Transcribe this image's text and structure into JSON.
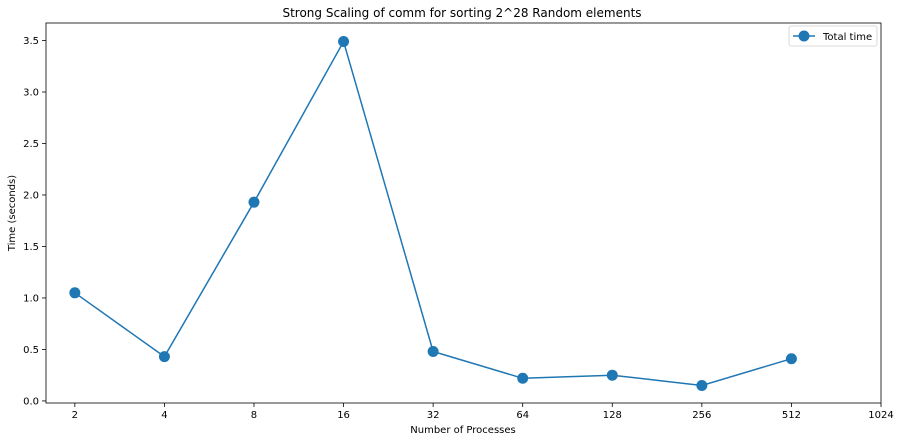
{
  "chart_data": {
    "type": "line",
    "title": "Strong Scaling of comm for sorting 2^28 Random elements",
    "xlabel": "Number of Processes",
    "ylabel": "Time (seconds)",
    "x_scale": "log2",
    "x_ticks": [
      "2",
      "4",
      "8",
      "16",
      "32",
      "64",
      "128",
      "256",
      "512",
      "1024"
    ],
    "y_ticks": [
      "0.0",
      "0.5",
      "1.0",
      "1.5",
      "2.0",
      "2.5",
      "3.0",
      "3.5"
    ],
    "ylim": [
      -0.02,
      3.67
    ],
    "xlim": [
      1.6,
      1024
    ],
    "grid": false,
    "legend_position": "top-right",
    "series": [
      {
        "name": "Total time",
        "color": "#1f77b4",
        "marker": "circle",
        "x": [
          2,
          4,
          8,
          16,
          32,
          64,
          128,
          256,
          512
        ],
        "y": [
          1.05,
          0.43,
          1.93,
          3.49,
          0.48,
          0.22,
          0.25,
          0.15,
          0.41
        ]
      }
    ]
  }
}
